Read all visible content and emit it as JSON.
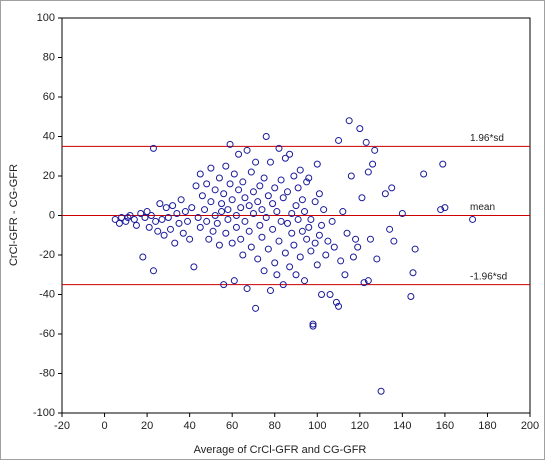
{
  "chart_data": {
    "type": "scatter",
    "x_label": "Average of CrCl-GFR and CG-GFR",
    "y_label": "CrCl-GFR - CG-GFR",
    "color": "#1a1a9a",
    "line_color": "#cc0000",
    "xlim": [
      -20,
      200
    ],
    "xticks": [
      -20,
      0,
      20,
      40,
      60,
      80,
      100,
      120,
      140,
      160,
      180,
      200
    ],
    "ylim": [
      -100,
      100
    ],
    "yticks": [
      -100,
      -80,
      -60,
      -40,
      -20,
      0,
      20,
      40,
      60,
      80,
      100
    ],
    "hlines": [
      {
        "value": 35,
        "label": "1.96*sd"
      },
      {
        "value": 0,
        "label": "mean"
      },
      {
        "value": -35,
        "label": "-1.96*sd"
      }
    ],
    "x": [
      5,
      7,
      8,
      10,
      11,
      12,
      14,
      15,
      17,
      18,
      19,
      20,
      21,
      22,
      23,
      23,
      24,
      25,
      26,
      27,
      28,
      29,
      30,
      31,
      32,
      33,
      34,
      35,
      36,
      37,
      38,
      39,
      40,
      41,
      42,
      43,
      44,
      45,
      45,
      46,
      47,
      48,
      48,
      49,
      50,
      50,
      51,
      52,
      52,
      53,
      54,
      54,
      55,
      55,
      56,
      56,
      57,
      57,
      58,
      58,
      59,
      59,
      60,
      60,
      61,
      61,
      62,
      62,
      63,
      63,
      64,
      64,
      65,
      65,
      66,
      66,
      67,
      67,
      68,
      68,
      69,
      69,
      70,
      70,
      71,
      71,
      72,
      72,
      73,
      73,
      74,
      74,
      75,
      75,
      76,
      76,
      77,
      77,
      78,
      78,
      79,
      79,
      80,
      80,
      81,
      81,
      82,
      82,
      83,
      83,
      84,
      84,
      85,
      85,
      86,
      86,
      87,
      87,
      88,
      88,
      89,
      89,
      90,
      90,
      91,
      91,
      92,
      92,
      93,
      93,
      94,
      94,
      95,
      95,
      96,
      96,
      97,
      97,
      98,
      98,
      99,
      99,
      100,
      100,
      101,
      101,
      102,
      102,
      103,
      104,
      105,
      106,
      107,
      108,
      109,
      110,
      110,
      111,
      112,
      113,
      114,
      115,
      116,
      117,
      118,
      119,
      120,
      121,
      122,
      123,
      124,
      124,
      125,
      126,
      127,
      128,
      130,
      132,
      134,
      135,
      136,
      140,
      144,
      145,
      146,
      150,
      158,
      160,
      159,
      173
    ],
    "values": [
      -2,
      -4,
      -1,
      -3,
      -1,
      0,
      -2,
      -5,
      1,
      -21,
      -1,
      2,
      -6,
      0,
      34,
      -28,
      -3,
      -8,
      6,
      -2,
      -10,
      4,
      -1,
      -7,
      5,
      -14,
      1,
      -4,
      8,
      -9,
      2,
      -3,
      -12,
      4,
      -26,
      15,
      -1,
      21,
      -6,
      10,
      3,
      -3,
      16,
      -12,
      24,
      7,
      -8,
      0,
      13,
      -4,
      19,
      -15,
      6,
      2,
      -35,
      11,
      -9,
      25,
      3,
      -2,
      36,
      16,
      -14,
      8,
      -33,
      21,
      0,
      -6,
      13,
      31,
      -12,
      4,
      -20,
      17,
      9,
      -3,
      33,
      -37,
      -8,
      5,
      22,
      -16,
      12,
      1,
      -47,
      27,
      -22,
      7,
      -5,
      15,
      -11,
      3,
      19,
      -28,
      40,
      -1,
      10,
      -17,
      27,
      -38,
      6,
      -7,
      14,
      -24,
      2,
      -30,
      34,
      -13,
      18,
      -3,
      -35,
      9,
      29,
      -19,
      -4,
      12,
      31,
      -26,
      1,
      -9,
      20,
      -15,
      5,
      -30,
      -2,
      14,
      -21,
      23,
      -8,
      8,
      -33,
      2,
      17,
      -12,
      -6,
      19,
      -18,
      -2,
      -55,
      -56,
      -14,
      7,
      26,
      -25,
      -10,
      11,
      -40,
      -5,
      3,
      -20,
      -13,
      -40,
      -3,
      -16,
      -44,
      38,
      -46,
      -23,
      2,
      -30,
      -9,
      48,
      20,
      -21,
      -12,
      -16,
      44,
      9,
      -34,
      37,
      22,
      -33,
      -12,
      26,
      33,
      -22,
      -89,
      11,
      -7,
      14,
      -13,
      1,
      -41,
      -29,
      -17,
      21,
      3,
      4,
      26,
      -2
    ]
  }
}
